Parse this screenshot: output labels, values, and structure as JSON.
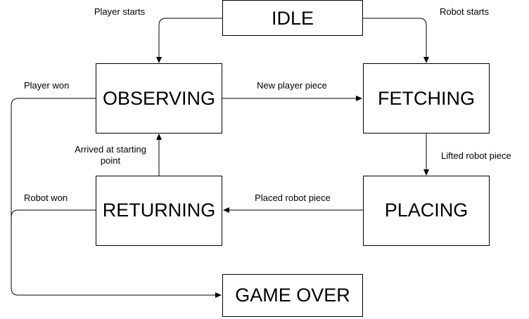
{
  "states": {
    "idle": "IDLE",
    "observing": "OBSERVING",
    "fetching": "FETCHING",
    "placing": "PLACING",
    "returning": "RETURNING",
    "game_over": "GAME OVER"
  },
  "transitions": {
    "player_starts": "Player starts",
    "robot_starts": "Robot starts",
    "new_player_piece": "New player piece",
    "lifted_robot_piece": "Lifted robot piece",
    "placed_robot_piece": "Placed robot piece",
    "arrived_line1": "Arrived at starting",
    "arrived_line2": "point",
    "player_won": "Player won",
    "robot_won": "Robot won"
  }
}
